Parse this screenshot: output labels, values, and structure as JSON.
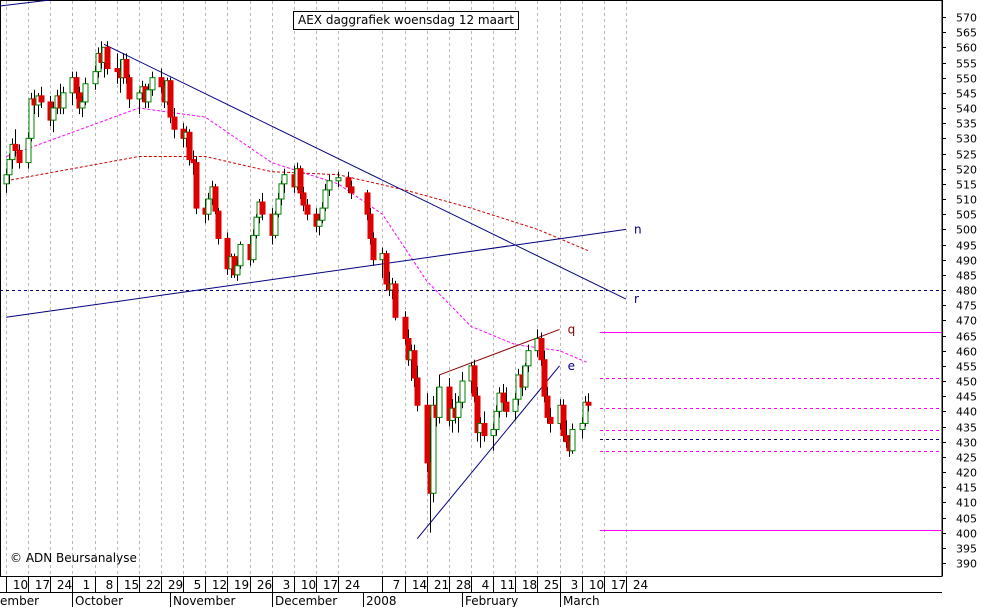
{
  "chart_data": {
    "type": "candlestick",
    "title": "AEX daggrafiek woensdag 12 maart",
    "credit": "© ADN Beursanalyse",
    "ylim": [
      385,
      575
    ],
    "y_ticks": [
      390,
      395,
      400,
      405,
      410,
      415,
      420,
      425,
      430,
      435,
      440,
      445,
      450,
      455,
      460,
      465,
      470,
      475,
      480,
      485,
      490,
      495,
      500,
      505,
      510,
      515,
      520,
      525,
      530,
      535,
      540,
      545,
      550,
      555,
      560,
      565,
      570
    ],
    "x_ticks": [
      {
        "label": "10",
        "date": "2007-09-10"
      },
      {
        "label": "17",
        "date": "2007-09-17"
      },
      {
        "label": "24",
        "date": "2007-09-24"
      },
      {
        "label": "1",
        "date": "2007-10-01"
      },
      {
        "label": "8",
        "date": "2007-10-08"
      },
      {
        "label": "15",
        "date": "2007-10-15"
      },
      {
        "label": "22",
        "date": "2007-10-22"
      },
      {
        "label": "29",
        "date": "2007-10-29"
      },
      {
        "label": "5",
        "date": "2007-11-05"
      },
      {
        "label": "12",
        "date": "2007-11-12"
      },
      {
        "label": "19",
        "date": "2007-11-19"
      },
      {
        "label": "26",
        "date": "2007-11-26"
      },
      {
        "label": "3",
        "date": "2007-12-03"
      },
      {
        "label": "10",
        "date": "2007-12-10"
      },
      {
        "label": "17",
        "date": "2007-12-17"
      },
      {
        "label": "24",
        "date": "2007-12-24"
      },
      {
        "label": "7",
        "date": "2008-01-07"
      },
      {
        "label": "14",
        "date": "2008-01-14"
      },
      {
        "label": "21",
        "date": "2008-01-21"
      },
      {
        "label": "28",
        "date": "2008-01-28"
      },
      {
        "label": "4",
        "date": "2008-02-04"
      },
      {
        "label": "11",
        "date": "2008-02-11"
      },
      {
        "label": "18",
        "date": "2008-02-18"
      },
      {
        "label": "25",
        "date": "2008-02-25"
      },
      {
        "label": "3",
        "date": "2008-03-03"
      },
      {
        "label": "10",
        "date": "2008-03-10"
      },
      {
        "label": "17",
        "date": "2008-03-17"
      },
      {
        "label": "24",
        "date": "2008-03-24"
      }
    ],
    "month_labels": [
      {
        "label": "ember",
        "date": "2007-09-10"
      },
      {
        "label": "October",
        "date": "2007-10-01"
      },
      {
        "label": "November",
        "date": "2007-11-01"
      },
      {
        "label": "December",
        "date": "2007-12-03"
      },
      {
        "label": "2008",
        "date": "2008-01-01"
      },
      {
        "label": "February",
        "date": "2008-02-01"
      },
      {
        "label": "March",
        "date": "2008-03-03"
      }
    ],
    "candles": [
      [
        "2007-09-10",
        515,
        520,
        512,
        518
      ],
      [
        "2007-09-11",
        518,
        525,
        515,
        523
      ],
      [
        "2007-09-12",
        523,
        530,
        520,
        528
      ],
      [
        "2007-09-13",
        528,
        533,
        524,
        526
      ],
      [
        "2007-09-14",
        526,
        528,
        520,
        522
      ],
      [
        "2007-09-17",
        522,
        532,
        520,
        530
      ],
      [
        "2007-09-18",
        530,
        545,
        529,
        543
      ],
      [
        "2007-09-19",
        543,
        546,
        538,
        541
      ],
      [
        "2007-09-20",
        541,
        545,
        537,
        544
      ],
      [
        "2007-09-21",
        544,
        547,
        540,
        542
      ],
      [
        "2007-09-24",
        542,
        544,
        534,
        536
      ],
      [
        "2007-09-25",
        536,
        542,
        532,
        540
      ],
      [
        "2007-09-26",
        540,
        546,
        538,
        544
      ],
      [
        "2007-09-27",
        544,
        548,
        538,
        540
      ],
      [
        "2007-09-28",
        540,
        547,
        538,
        545
      ],
      [
        "2007-10-01",
        545,
        552,
        541,
        550
      ],
      [
        "2007-10-02",
        550,
        552,
        543,
        545
      ],
      [
        "2007-10-03",
        545,
        547,
        538,
        540
      ],
      [
        "2007-10-04",
        540,
        544,
        537,
        542
      ],
      [
        "2007-10-05",
        542,
        550,
        541,
        548
      ],
      [
        "2007-10-08",
        548,
        554,
        546,
        552
      ],
      [
        "2007-10-09",
        552,
        560,
        550,
        558
      ],
      [
        "2007-10-10",
        558,
        562,
        553,
        555
      ],
      [
        "2007-10-11",
        555,
        560,
        550,
        560
      ],
      [
        "2007-10-12",
        560,
        562,
        551,
        553
      ],
      [
        "2007-10-15",
        553,
        558,
        548,
        552
      ],
      [
        "2007-10-16",
        552,
        556,
        545,
        550
      ],
      [
        "2007-10-17",
        550,
        558,
        548,
        556
      ],
      [
        "2007-10-18",
        556,
        558,
        548,
        550
      ],
      [
        "2007-10-19",
        550,
        551,
        540,
        543
      ],
      [
        "2007-10-22",
        543,
        546,
        538,
        545
      ],
      [
        "2007-10-23",
        545,
        549,
        542,
        547
      ],
      [
        "2007-10-24",
        547,
        548,
        540,
        542
      ],
      [
        "2007-10-25",
        542,
        548,
        540,
        546
      ],
      [
        "2007-10-26",
        546,
        552,
        544,
        550
      ],
      [
        "2007-10-29",
        550,
        553,
        545,
        547
      ],
      [
        "2007-10-30",
        547,
        549,
        540,
        542
      ],
      [
        "2007-10-31",
        542,
        550,
        541,
        549
      ],
      [
        "2007-11-01",
        549,
        550,
        535,
        537
      ],
      [
        "2007-11-02",
        537,
        540,
        530,
        533
      ],
      [
        "2007-11-05",
        533,
        535,
        527,
        530
      ],
      [
        "2007-11-06",
        530,
        534,
        527,
        532
      ],
      [
        "2007-11-07",
        532,
        533,
        521,
        523
      ],
      [
        "2007-11-08",
        523,
        526,
        518,
        522
      ],
      [
        "2007-11-09",
        522,
        524,
        505,
        507
      ],
      [
        "2007-11-12",
        507,
        510,
        502,
        505
      ],
      [
        "2007-11-13",
        505,
        512,
        503,
        510
      ],
      [
        "2007-11-14",
        510,
        516,
        508,
        514
      ],
      [
        "2007-11-15",
        514,
        515,
        505,
        506
      ],
      [
        "2007-11-16",
        506,
        507,
        495,
        497
      ],
      [
        "2007-11-19",
        497,
        499,
        485,
        487
      ],
      [
        "2007-11-20",
        487,
        492,
        484,
        491
      ],
      [
        "2007-11-21",
        491,
        492,
        484,
        485
      ],
      [
        "2007-11-22",
        485,
        490,
        483,
        488
      ],
      [
        "2007-11-23",
        488,
        496,
        487,
        495
      ],
      [
        "2007-11-26",
        495,
        498,
        488,
        490
      ],
      [
        "2007-11-27",
        490,
        500,
        489,
        498
      ],
      [
        "2007-11-28",
        498,
        505,
        497,
        504
      ],
      [
        "2007-11-29",
        504,
        510,
        502,
        509
      ],
      [
        "2007-11-30",
        509,
        512,
        503,
        505
      ],
      [
        "2007-12-03",
        505,
        507,
        495,
        498
      ],
      [
        "2007-12-04",
        498,
        506,
        497,
        505
      ],
      [
        "2007-12-05",
        505,
        512,
        504,
        510
      ],
      [
        "2007-12-06",
        510,
        516,
        508,
        515
      ],
      [
        "2007-12-07",
        515,
        520,
        512,
        518
      ],
      [
        "2007-12-10",
        518,
        521,
        512,
        514
      ],
      [
        "2007-12-11",
        514,
        522,
        513,
        520
      ],
      [
        "2007-12-12",
        520,
        521,
        510,
        512
      ],
      [
        "2007-12-13",
        512,
        514,
        506,
        508
      ],
      [
        "2007-12-14",
        508,
        510,
        503,
        505
      ],
      [
        "2007-12-17",
        505,
        507,
        499,
        501
      ],
      [
        "2007-12-18",
        501,
        505,
        498,
        503
      ],
      [
        "2007-12-19",
        503,
        509,
        502,
        507
      ],
      [
        "2007-12-20",
        507,
        515,
        506,
        513
      ],
      [
        "2007-12-21",
        513,
        518,
        511,
        516
      ],
      [
        "2007-12-24",
        516,
        519,
        514,
        517
      ],
      [
        "2007-12-27",
        517,
        519,
        512,
        514
      ],
      [
        "2007-12-28",
        514,
        516,
        510,
        512
      ],
      [
        "2008-01-02",
        512,
        513,
        503,
        505
      ],
      [
        "2008-01-03",
        505,
        507,
        495,
        497
      ],
      [
        "2008-01-04",
        497,
        499,
        488,
        490
      ],
      [
        "2008-01-07",
        490,
        494,
        484,
        492
      ],
      [
        "2008-01-08",
        492,
        493,
        480,
        482
      ],
      [
        "2008-01-09",
        482,
        486,
        478,
        480
      ],
      [
        "2008-01-10",
        480,
        484,
        477,
        482
      ],
      [
        "2008-01-11",
        482,
        483,
        470,
        471
      ],
      [
        "2008-01-14",
        471,
        473,
        462,
        464
      ],
      [
        "2008-01-15",
        464,
        467,
        455,
        457
      ],
      [
        "2008-01-16",
        457,
        462,
        450,
        460
      ],
      [
        "2008-01-17",
        460,
        462,
        448,
        451
      ],
      [
        "2008-01-18",
        451,
        455,
        440,
        442
      ],
      [
        "2008-01-21",
        442,
        446,
        420,
        423
      ],
      [
        "2008-01-22",
        423,
        438,
        400,
        413
      ],
      [
        "2008-01-23",
        413,
        445,
        410,
        442
      ],
      [
        "2008-01-24",
        442,
        448,
        435,
        438
      ],
      [
        "2008-01-25",
        438,
        452,
        436,
        448
      ],
      [
        "2008-01-28",
        448,
        451,
        435,
        437
      ],
      [
        "2008-01-29",
        437,
        444,
        433,
        441
      ],
      [
        "2008-01-30",
        441,
        446,
        436,
        438
      ],
      [
        "2008-01-31",
        438,
        445,
        433,
        443
      ],
      [
        "2008-02-01",
        443,
        453,
        441,
        450
      ],
      [
        "2008-02-04",
        450,
        456,
        446,
        455
      ],
      [
        "2008-02-05",
        455,
        457,
        443,
        445
      ],
      [
        "2008-02-06",
        445,
        448,
        430,
        433
      ],
      [
        "2008-02-07",
        433,
        438,
        428,
        436
      ],
      [
        "2008-02-08",
        436,
        440,
        430,
        432
      ],
      [
        "2008-02-11",
        432,
        436,
        427,
        434
      ],
      [
        "2008-02-12",
        434,
        442,
        432,
        440
      ],
      [
        "2008-02-13",
        440,
        448,
        438,
        446
      ],
      [
        "2008-02-14",
        446,
        449,
        440,
        443
      ],
      [
        "2008-02-15",
        443,
        448,
        438,
        440
      ],
      [
        "2008-02-18",
        440,
        446,
        437,
        444
      ],
      [
        "2008-02-19",
        444,
        454,
        442,
        452
      ],
      [
        "2008-02-20",
        452,
        455,
        445,
        448
      ],
      [
        "2008-02-21",
        448,
        456,
        447,
        455
      ],
      [
        "2008-02-22",
        455,
        462,
        453,
        460
      ],
      [
        "2008-02-25",
        460,
        467,
        458,
        464
      ],
      [
        "2008-02-26",
        464,
        466,
        455,
        457
      ],
      [
        "2008-02-27",
        457,
        460,
        443,
        445
      ],
      [
        "2008-02-28",
        445,
        448,
        436,
        438
      ],
      [
        "2008-02-29",
        438,
        441,
        433,
        436
      ],
      [
        "2008-03-03",
        436,
        444,
        434,
        442
      ],
      [
        "2008-03-04",
        442,
        444,
        430,
        432
      ],
      [
        "2008-03-05",
        432,
        437,
        428,
        430
      ],
      [
        "2008-03-06",
        430,
        432,
        425,
        427
      ],
      [
        "2008-03-07",
        427,
        436,
        426,
        434
      ],
      [
        "2008-03-10",
        434,
        438,
        431,
        436
      ],
      [
        "2008-03-11",
        436,
        445,
        435,
        443
      ],
      [
        "2008-03-12",
        443,
        446,
        440,
        442
      ]
    ],
    "trendlines": [
      {
        "label": "",
        "color": "#000080",
        "points": [
          [
            "2007-09-17",
            0
          ],
          [
            "2007-09-24",
            575
          ]
        ],
        "note": ""
      },
      {
        "label": "r",
        "color": "#000080",
        "points": [
          [
            "2007-10-11",
            561
          ],
          [
            "2008-03-24",
            477
          ]
        ]
      },
      {
        "label": "n",
        "color": "#000080",
        "points": [
          [
            "2007-09-10",
            471
          ],
          [
            "2008-03-24",
            500
          ]
        ]
      },
      {
        "label": "q",
        "color": "#8b0000",
        "points": [
          [
            "2008-01-25",
            452
          ],
          [
            "2008-03-03",
            467
          ]
        ]
      },
      {
        "label": "e",
        "color": "#000080",
        "points": [
          [
            "2008-01-18",
            398
          ],
          [
            "2008-03-03",
            455
          ]
        ]
      }
    ],
    "horizontal_levels": [
      {
        "value": 480,
        "color": "#000080",
        "style": "dashed"
      },
      {
        "value": 466,
        "color": "#ff00ff",
        "style": "solid"
      },
      {
        "value": 451,
        "color": "#ff00ff",
        "style": "dashed"
      },
      {
        "value": 441,
        "color": "#ff00ff",
        "style": "dashed"
      },
      {
        "value": 434,
        "color": "#ff00ff",
        "style": "dashed"
      },
      {
        "value": 431,
        "color": "#000080",
        "style": "dashed"
      },
      {
        "value": 427,
        "color": "#ff00ff",
        "style": "dashed"
      },
      {
        "value": 401,
        "color": "#ff00ff",
        "style": "solid"
      }
    ],
    "moving_averages": [
      {
        "color": "#ff00ff",
        "style": "dashed",
        "points": [
          [
            "2007-09-10",
            524
          ],
          [
            "2007-10-01",
            532
          ],
          [
            "2007-10-22",
            540
          ],
          [
            "2007-11-12",
            537
          ],
          [
            "2007-12-03",
            522
          ],
          [
            "2007-12-24",
            515
          ],
          [
            "2008-01-07",
            505
          ],
          [
            "2008-01-21",
            483
          ],
          [
            "2008-02-04",
            468
          ],
          [
            "2008-02-18",
            462
          ],
          [
            "2008-03-03",
            460
          ],
          [
            "2008-03-12",
            456
          ]
        ]
      },
      {
        "color": "#cc0000",
        "style": "dashed",
        "points": [
          [
            "2007-09-10",
            516
          ],
          [
            "2007-10-01",
            520
          ],
          [
            "2007-10-22",
            524
          ],
          [
            "2007-11-12",
            524
          ],
          [
            "2007-12-03",
            519
          ],
          [
            "2007-12-24",
            518
          ],
          [
            "2008-01-14",
            513
          ],
          [
            "2008-02-04",
            507
          ],
          [
            "2008-02-25",
            500
          ],
          [
            "2008-03-12",
            493
          ]
        ]
      }
    ],
    "colors": {
      "up": "#008000",
      "down": "#dd0000",
      "grid": "#b8b8b8",
      "axis": "#000000"
    }
  }
}
